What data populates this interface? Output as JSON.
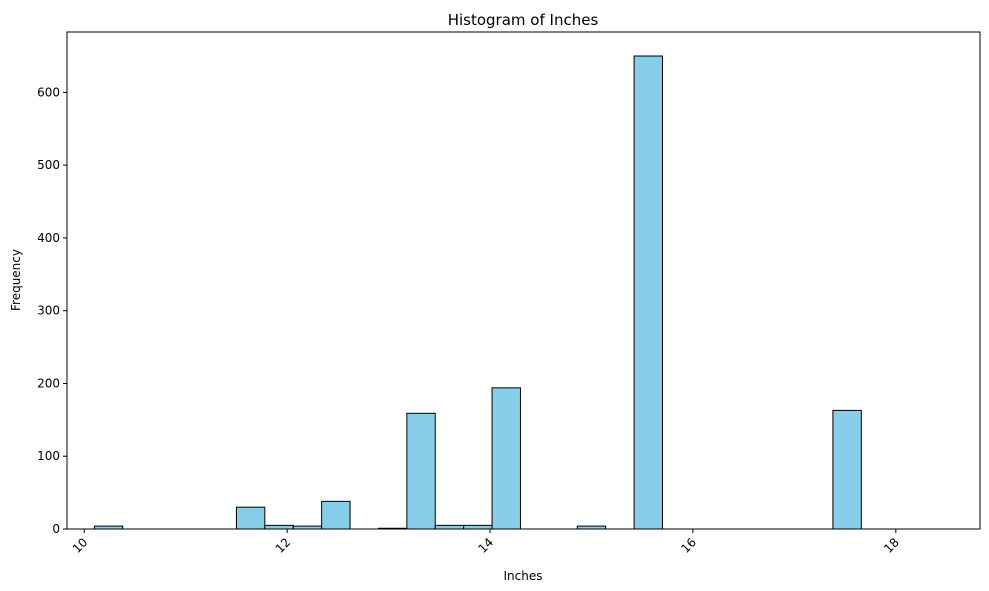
{
  "chart_data": {
    "type": "bar",
    "title": "Histogram of Inches",
    "xlabel": "Inches",
    "ylabel": "Frequency",
    "xlim": [
      9.83,
      18.83
    ],
    "ylim": [
      0,
      683
    ],
    "x_ticks": [
      10,
      12,
      14,
      16,
      18
    ],
    "y_ticks": [
      0,
      100,
      200,
      300,
      400,
      500,
      600
    ],
    "grid": false,
    "legend": "none",
    "colors": {
      "bar_fill": "#87ceeb",
      "bar_edge": "#000000"
    },
    "bins": [
      {
        "x0": 10.1,
        "x1": 10.38,
        "count": 4
      },
      {
        "x0": 10.38,
        "x1": 10.66,
        "count": 0
      },
      {
        "x0": 10.66,
        "x1": 10.94,
        "count": 0
      },
      {
        "x0": 10.94,
        "x1": 11.22,
        "count": 0
      },
      {
        "x0": 11.22,
        "x1": 11.5,
        "count": 0
      },
      {
        "x0": 11.5,
        "x1": 11.78,
        "count": 30
      },
      {
        "x0": 11.78,
        "x1": 12.06,
        "count": 5
      },
      {
        "x0": 12.06,
        "x1": 12.34,
        "count": 4
      },
      {
        "x0": 12.34,
        "x1": 12.62,
        "count": 38
      },
      {
        "x0": 12.62,
        "x1": 12.9,
        "count": 0
      },
      {
        "x0": 12.9,
        "x1": 13.18,
        "count": 1
      },
      {
        "x0": 13.18,
        "x1": 13.46,
        "count": 159
      },
      {
        "x0": 13.46,
        "x1": 13.74,
        "count": 5
      },
      {
        "x0": 13.74,
        "x1": 14.02,
        "count": 5
      },
      {
        "x0": 14.02,
        "x1": 14.3,
        "count": 194
      },
      {
        "x0": 14.3,
        "x1": 14.58,
        "count": 0
      },
      {
        "x0": 14.58,
        "x1": 14.86,
        "count": 0
      },
      {
        "x0": 14.86,
        "x1": 15.14,
        "count": 4
      },
      {
        "x0": 15.14,
        "x1": 15.42,
        "count": 0
      },
      {
        "x0": 15.42,
        "x1": 15.7,
        "count": 650
      },
      {
        "x0": 15.7,
        "x1": 15.98,
        "count": 0
      },
      {
        "x0": 15.98,
        "x1": 16.26,
        "count": 0
      },
      {
        "x0": 16.26,
        "x1": 16.54,
        "count": 0
      },
      {
        "x0": 16.54,
        "x1": 16.82,
        "count": 0
      },
      {
        "x0": 16.82,
        "x1": 17.1,
        "count": 0
      },
      {
        "x0": 17.1,
        "x1": 17.38,
        "count": 0
      },
      {
        "x0": 17.38,
        "x1": 17.66,
        "count": 163
      },
      {
        "x0": 17.66,
        "x1": 17.94,
        "count": 0
      },
      {
        "x0": 17.94,
        "x1": 18.22,
        "count": 0
      },
      {
        "x0": 18.22,
        "x1": 18.4,
        "count": 0
      }
    ]
  }
}
